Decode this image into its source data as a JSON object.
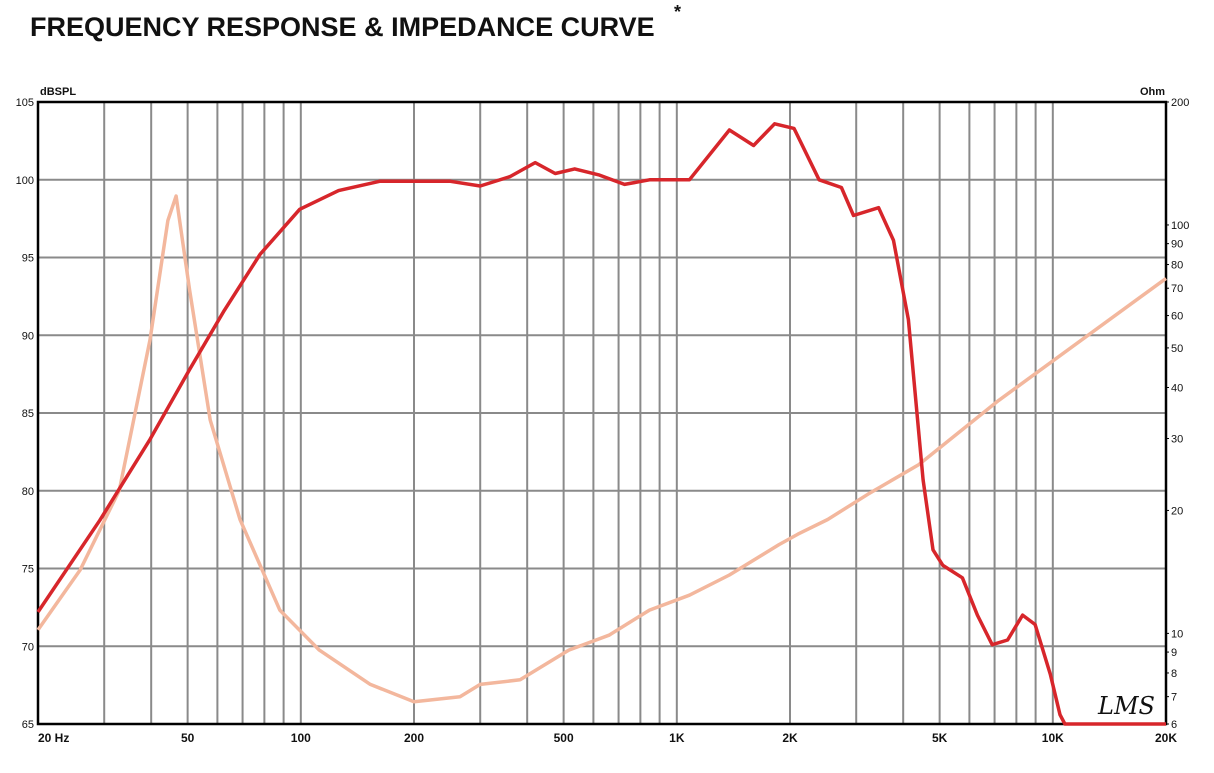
{
  "chart_data": {
    "type": "line",
    "title": "FREQUENCY RESPONSE & IMPEDANCE CURVE",
    "title_mark": "*",
    "ylabel": "dBSPL",
    "y2label": "Ohm",
    "logo": "LMS",
    "xscale": "log",
    "y2scale": "log",
    "grid": true,
    "xlim": [
      20,
      20000
    ],
    "xticks": [
      {
        "value": 20,
        "label": "20 Hz"
      },
      50,
      100,
      200,
      500,
      {
        "value": 1000,
        "label": "1K"
      },
      {
        "value": 2000,
        "label": "2K"
      },
      {
        "value": 5000,
        "label": "5K"
      },
      {
        "value": 10000,
        "label": "10K"
      },
      {
        "value": 20000,
        "label": "20K"
      }
    ],
    "x_minor_grid": [
      30,
      40,
      60,
      70,
      80,
      90,
      300,
      400,
      600,
      700,
      800,
      900,
      3000,
      4000,
      6000,
      7000,
      8000,
      9000
    ],
    "ylim": [
      65,
      105
    ],
    "yticks": [
      65,
      70,
      75,
      80,
      85,
      90,
      95,
      100,
      105
    ],
    "y2lim": [
      6,
      200
    ],
    "y2ticks": [
      6,
      7,
      8,
      9,
      10,
      20,
      30,
      40,
      50,
      60,
      70,
      80,
      90,
      100,
      200
    ],
    "series": [
      {
        "color": "#d7262b",
        "axis": "y",
        "x": [
          20,
          29.2,
          39.7,
          50.6,
          62.6,
          77.9,
          99.3,
          126,
          162,
          200,
          250,
          300,
          360,
          420,
          475,
          535,
          623,
          726,
          846,
          1080,
          1380,
          1600,
          1820,
          2050,
          2390,
          2740,
          2950,
          3440,
          3770,
          4130,
          4520,
          4800,
          5100,
          5750,
          6300,
          6900,
          7580,
          8310,
          8970,
          9850,
          10450,
          10770,
          20000
        ],
        "values": [
          72.2,
          78.1,
          83.3,
          87.8,
          91.6,
          95.2,
          98.1,
          99.3,
          99.9,
          99.9,
          99.9,
          99.6,
          100.2,
          101.1,
          100.4,
          100.7,
          100.3,
          99.7,
          100.0,
          100.0,
          103.2,
          102.2,
          103.6,
          103.3,
          100.0,
          99.5,
          97.7,
          98.2,
          96.1,
          91.0,
          80.7,
          76.2,
          75.2,
          74.4,
          72.0,
          70.1,
          70.4,
          72.0,
          71.4,
          68.2,
          65.6,
          65,
          65
        ]
      },
      {
        "color": "#f3b79d",
        "axis": "y2",
        "x": [
          20,
          25.9,
          32.9,
          39.7,
          44.3,
          46.6,
          50.6,
          57.4,
          68.9,
          87.9,
          112,
          153,
          200,
          265,
          300,
          383,
          516,
          660,
          846,
          1080,
          1380,
          1870,
          2100,
          2520,
          3220,
          4400,
          7180,
          20000
        ],
        "values": [
          10.2,
          14.3,
          22.4,
          52.3,
          102.6,
          117.7,
          69.3,
          33.3,
          19.0,
          11.4,
          9.1,
          7.5,
          6.8,
          7.0,
          7.5,
          7.7,
          9.1,
          9.9,
          11.4,
          12.4,
          13.9,
          16.5,
          17.5,
          19.0,
          21.9,
          25.9,
          37.2,
          74.0
        ]
      }
    ]
  }
}
